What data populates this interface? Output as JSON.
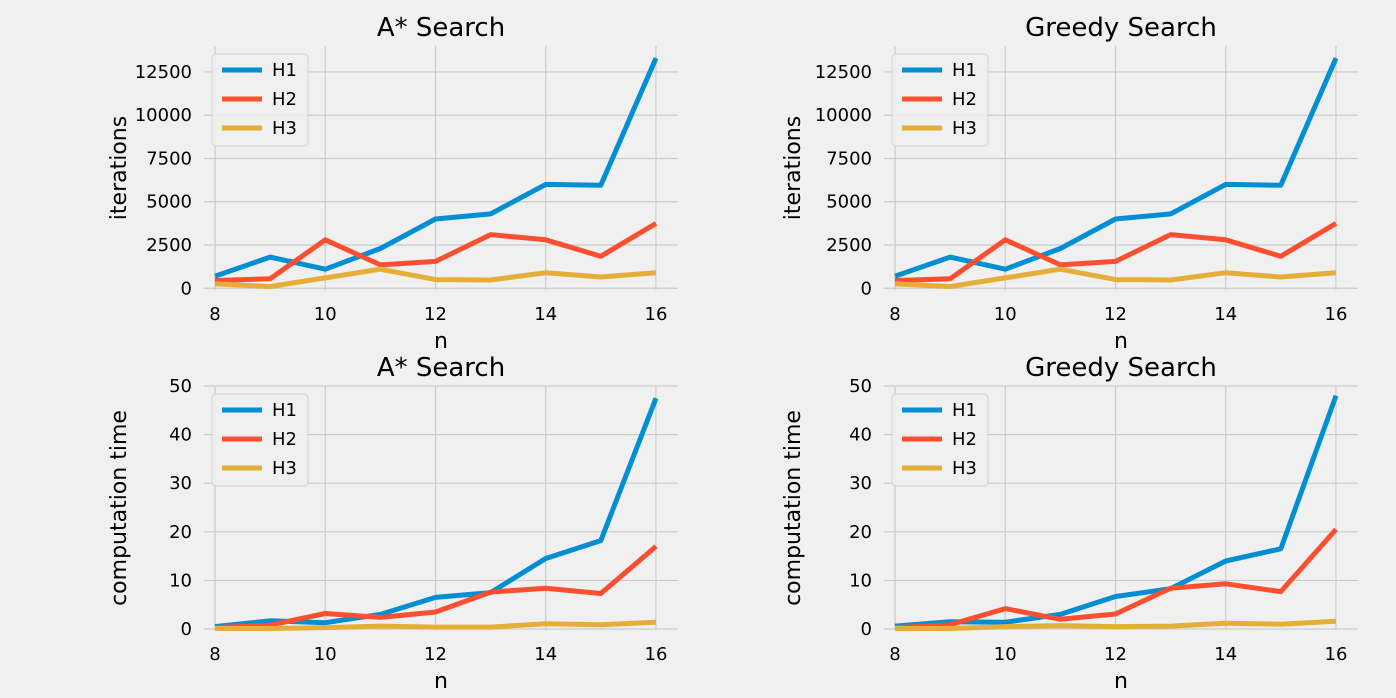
{
  "chart_data": [
    {
      "type": "line",
      "title": "A* Search",
      "xlabel": "n",
      "ylabel": "iterations",
      "x": [
        8,
        9,
        10,
        11,
        12,
        13,
        14,
        15,
        16
      ],
      "xticks": [
        8,
        10,
        12,
        14,
        16
      ],
      "yticks": [
        0,
        2500,
        5000,
        7500,
        10000,
        12500
      ],
      "xlim": [
        7.8,
        16.4
      ],
      "ylim": [
        -100,
        14000
      ],
      "grid": true,
      "legend": "top-left",
      "series": [
        {
          "name": "H1",
          "color": "#008fd5",
          "values": [
            700,
            1800,
            1100,
            2300,
            4000,
            4300,
            6000,
            5950,
            13300
          ]
        },
        {
          "name": "H2",
          "color": "#fc4f30",
          "values": [
            450,
            550,
            2800,
            1350,
            1550,
            3100,
            2800,
            1850,
            3750
          ]
        },
        {
          "name": "H3",
          "color": "#e5ae38",
          "values": [
            250,
            100,
            600,
            1100,
            500,
            480,
            900,
            650,
            900
          ]
        }
      ]
    },
    {
      "type": "line",
      "title": "Greedy Search",
      "xlabel": "n",
      "ylabel": "iterations",
      "x": [
        8,
        9,
        10,
        11,
        12,
        13,
        14,
        15,
        16
      ],
      "xticks": [
        8,
        10,
        12,
        14,
        16
      ],
      "yticks": [
        0,
        2500,
        5000,
        7500,
        10000,
        12500
      ],
      "xlim": [
        7.8,
        16.4
      ],
      "ylim": [
        -100,
        14000
      ],
      "grid": true,
      "legend": "top-left",
      "series": [
        {
          "name": "H1",
          "color": "#008fd5",
          "values": [
            700,
            1800,
            1100,
            2300,
            4000,
            4300,
            6000,
            5950,
            13300
          ]
        },
        {
          "name": "H2",
          "color": "#fc4f30",
          "values": [
            450,
            550,
            2800,
            1350,
            1550,
            3100,
            2800,
            1850,
            3750
          ]
        },
        {
          "name": "H3",
          "color": "#e5ae38",
          "values": [
            250,
            100,
            600,
            1100,
            500,
            480,
            900,
            650,
            900
          ]
        }
      ]
    },
    {
      "type": "line",
      "title": "A* Search",
      "xlabel": "n",
      "ylabel": "computation time",
      "x": [
        8,
        9,
        10,
        11,
        12,
        13,
        14,
        15,
        16
      ],
      "xticks": [
        8,
        10,
        12,
        14,
        16
      ],
      "yticks": [
        0,
        10,
        20,
        30,
        40,
        50
      ],
      "xlim": [
        7.8,
        16.4
      ],
      "ylim": [
        -0.2,
        50
      ],
      "grid": true,
      "legend": "top-left",
      "series": [
        {
          "name": "H1",
          "color": "#008fd5",
          "values": [
            0.5,
            1.7,
            1.3,
            3.0,
            6.5,
            7.5,
            14.5,
            18.2,
            47.5
          ]
        },
        {
          "name": "H2",
          "color": "#fc4f30",
          "values": [
            0.3,
            0.8,
            3.2,
            2.4,
            3.5,
            7.6,
            8.4,
            7.3,
            17.0
          ]
        },
        {
          "name": "H3",
          "color": "#e5ae38",
          "values": [
            0.1,
            0.1,
            0.3,
            0.6,
            0.4,
            0.4,
            1.1,
            0.9,
            1.4
          ]
        }
      ]
    },
    {
      "type": "line",
      "title": "Greedy Search",
      "xlabel": "n",
      "ylabel": "computation time",
      "x": [
        8,
        9,
        10,
        11,
        12,
        13,
        14,
        15,
        16
      ],
      "xticks": [
        8,
        10,
        12,
        14,
        16
      ],
      "yticks": [
        0,
        10,
        20,
        30,
        40,
        50
      ],
      "xlim": [
        7.8,
        16.4
      ],
      "ylim": [
        -0.2,
        50
      ],
      "grid": true,
      "legend": "top-left",
      "series": [
        {
          "name": "H1",
          "color": "#008fd5",
          "values": [
            0.6,
            1.5,
            1.4,
            3.0,
            6.7,
            8.3,
            14.0,
            16.5,
            48.0
          ]
        },
        {
          "name": "H2",
          "color": "#fc4f30",
          "values": [
            0.3,
            0.9,
            4.2,
            2.0,
            3.1,
            8.4,
            9.3,
            7.7,
            20.5
          ]
        },
        {
          "name": "H3",
          "color": "#e5ae38",
          "values": [
            0.1,
            0.1,
            0.5,
            0.7,
            0.5,
            0.6,
            1.2,
            1.0,
            1.6
          ]
        }
      ]
    }
  ]
}
